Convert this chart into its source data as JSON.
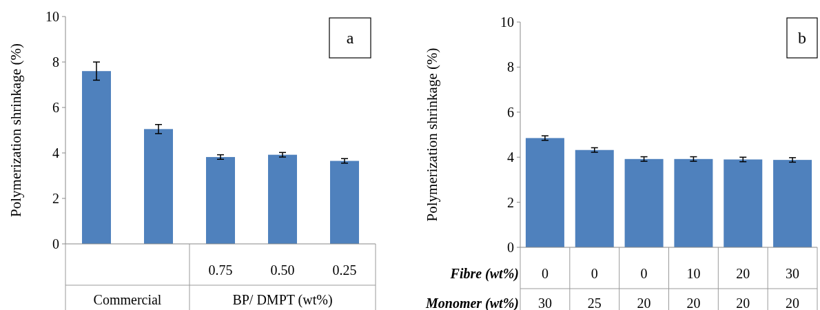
{
  "chart_data": [
    {
      "type": "bar",
      "title": "a",
      "ylabel": "Polymerization shrinkage (%)",
      "categories": [
        null,
        null,
        "0.75",
        "0.50",
        "0.25"
      ],
      "values": [
        7.6,
        5.05,
        3.82,
        3.92,
        3.65
      ],
      "errors": [
        0.4,
        0.2,
        0.1,
        0.1,
        0.1
      ],
      "color": "#4f81bd",
      "ylim": [
        0,
        10
      ],
      "yticks": [
        0,
        2,
        4,
        6,
        8,
        10
      ],
      "grid": false,
      "annotations": [
        "Commercial",
        "BP/ DMPT (wt%)"
      ]
    },
    {
      "type": "bar",
      "title": "b",
      "ylabel": "Polymerization shrinkage (%)",
      "xlabel": "Fibre (wt%)",
      "categories": [
        "0",
        "0",
        "0",
        "10",
        "20",
        "30"
      ],
      "values": [
        4.85,
        4.32,
        3.92,
        3.92,
        3.9,
        3.88
      ],
      "errors": [
        0.1,
        0.1,
        0.1,
        0.1,
        0.1,
        0.1
      ],
      "color": "#4f81bd",
      "ylim": [
        0,
        10
      ],
      "yticks": [
        0,
        2,
        4,
        6,
        8,
        10
      ],
      "grid": false,
      "annotations": [
        "Monomer (wt%)",
        "30",
        "25",
        "20",
        "20",
        "20",
        "20"
      ]
    }
  ]
}
